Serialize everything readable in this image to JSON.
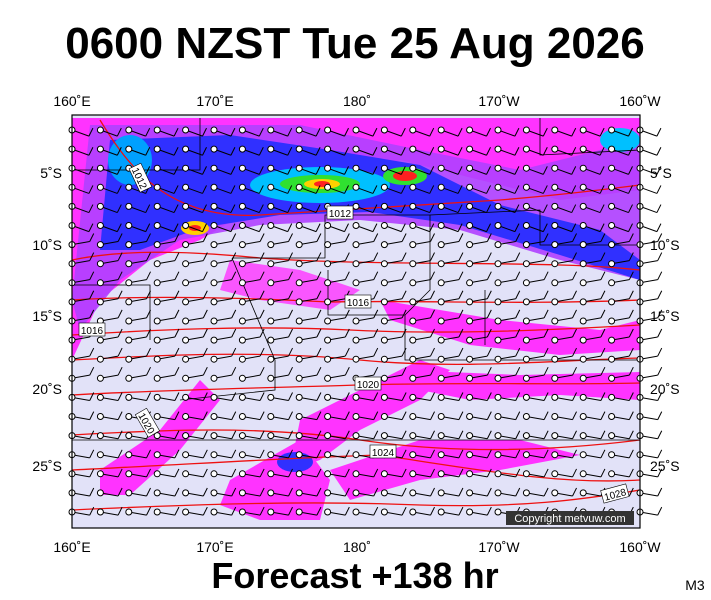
{
  "header": {
    "title": "0600 NZST Tue 25 Aug 2026"
  },
  "map": {
    "lon_labels": [
      "160˚E",
      "170˚E",
      "180˚",
      "170˚W",
      "160˚W"
    ],
    "lat_labels": [
      "5˚S",
      "10˚S",
      "15˚S",
      "20˚S",
      "25˚S"
    ],
    "isobar_labels": [
      "1012",
      "1012",
      "1016",
      "1016",
      "1020",
      "1020",
      "1024",
      "1028"
    ],
    "copyright": "Copyright metvuw.com"
  },
  "footer": {
    "forecast": "Forecast +138 hr",
    "model": "M3"
  }
}
